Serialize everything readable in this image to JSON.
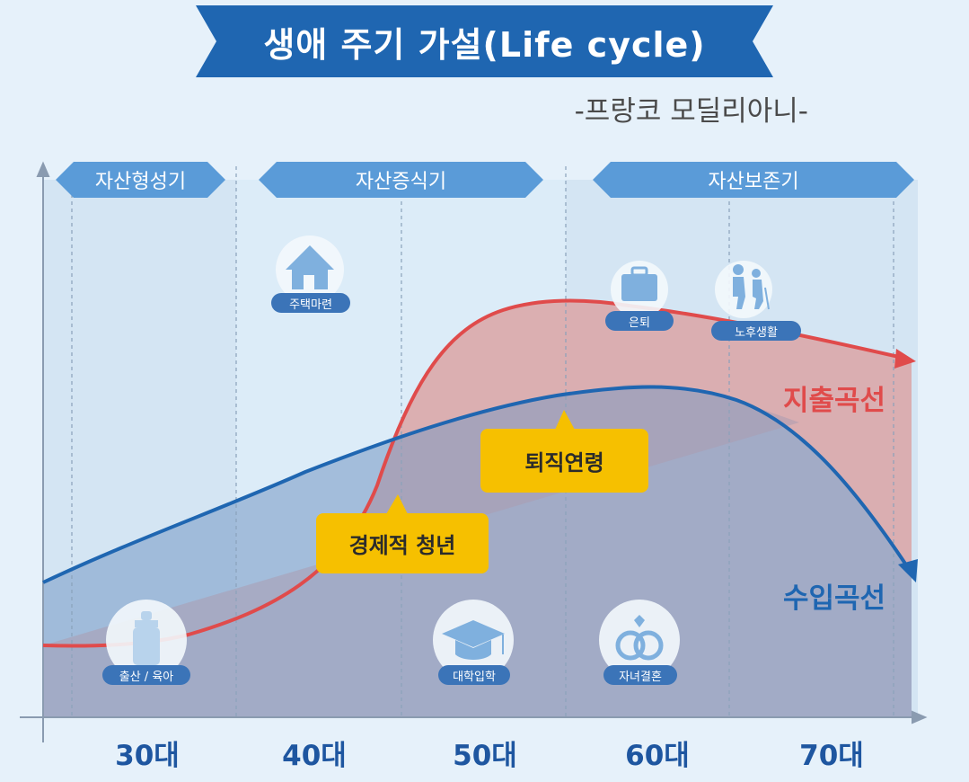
{
  "title": "생애 주기 가설(Life cycle)",
  "subtitle": "-프랑코 모딜리아니-",
  "phases": [
    {
      "label": "자산형성기"
    },
    {
      "label": "자산증식기"
    },
    {
      "label": "자산보존기"
    }
  ],
  "events": {
    "housing": "주택마련",
    "retirement": "은퇴",
    "old_age": "노후생활",
    "birth": "출산 / 육아",
    "college": "대학입학",
    "marriage": "자녀결혼"
  },
  "callouts": {
    "retirement_age": "퇴직연령",
    "economic_youth": "경제적 청년"
  },
  "curves": {
    "spending": {
      "label": "지출곡선",
      "color": "#e04b4b"
    },
    "income": {
      "label": "수입곡선",
      "color": "#1f66b1"
    }
  },
  "age_labels": [
    "30대",
    "40대",
    "50대",
    "60대",
    "70대"
  ],
  "colors": {
    "banner": "#1f66b1",
    "phase": "#5a9bd8",
    "callout": "#f6c000",
    "badge": "#3b74b8"
  }
}
